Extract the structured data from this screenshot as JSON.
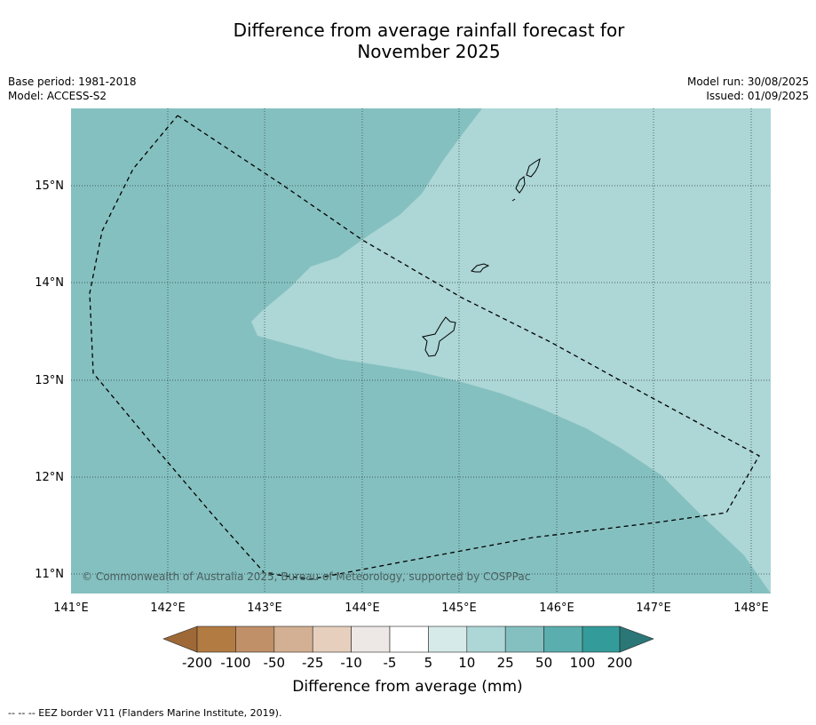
{
  "header": {
    "title_line1": "Difference from average rainfall forecast for",
    "title_line2": "November 2025",
    "base_period": "Base period: 1981-2018",
    "model": "Model: ACCESS-S2",
    "model_run": "Model run: 30/08/2025",
    "issued": "Issued: 01/09/2025"
  },
  "map": {
    "copyright": "© Commonwealth of Australia 2025, Bureau of Meteorology, supported by COSPPac",
    "lon_labels": [
      "141°E",
      "142°E",
      "143°E",
      "144°E",
      "145°E",
      "146°E",
      "147°E",
      "148°E"
    ],
    "lat_labels": [
      "15°N",
      "14°N",
      "13°N",
      "12°N",
      "11°N"
    ],
    "colors": {
      "class_25_50": "#85c0c0",
      "class_10_25": "#add6d6"
    }
  },
  "colorbar": {
    "title": "Difference from average (mm)",
    "tick_labels": [
      "-200",
      "-100",
      "-50",
      "-25",
      "-10",
      "-5",
      "5",
      "10",
      "25",
      "50",
      "100",
      "200"
    ],
    "colors": [
      "#9e6937",
      "#b27b42",
      "#c09068",
      "#d3b093",
      "#e6cfbd",
      "#ede8e5",
      "#ffffff",
      "#d6eae9",
      "#add6d6",
      "#85c0c0",
      "#5aafae",
      "#339c9a",
      "#2b7676"
    ]
  },
  "footnote": "--  --  -- EEZ border V11 (Flanders Marine Institute, 2019)."
}
